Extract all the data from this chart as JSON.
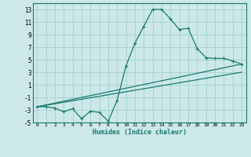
{
  "xlabel": "Humidex (Indice chaleur)",
  "bg_color": "#cce8e8",
  "line_color": "#1a7a6e",
  "grid_color": "#a8d4d4",
  "ylim": [
    -5,
    14
  ],
  "xlim": [
    -0.5,
    23.5
  ],
  "yticks": [
    -5,
    -3,
    -1,
    1,
    3,
    5,
    7,
    9,
    11,
    13
  ],
  "xticks": [
    0,
    1,
    2,
    3,
    4,
    5,
    6,
    7,
    8,
    9,
    10,
    11,
    12,
    13,
    14,
    15,
    16,
    17,
    18,
    19,
    20,
    21,
    22,
    23
  ],
  "curve1_x": [
    0,
    1,
    2,
    3,
    4,
    5,
    6,
    7,
    8,
    9,
    10,
    11,
    12,
    13,
    14,
    15,
    16,
    17,
    18,
    19,
    20,
    21,
    22,
    23
  ],
  "curve1_y": [
    -2.5,
    -2.5,
    -2.7,
    -3.3,
    -2.8,
    -4.4,
    -3.2,
    -3.4,
    -4.8,
    -1.5,
    4.0,
    7.6,
    10.3,
    13.0,
    13.0,
    11.5,
    9.8,
    10.0,
    6.8,
    5.3,
    5.2,
    5.2,
    4.8,
    4.3
  ],
  "line2_x": [
    0,
    23
  ],
  "line2_y": [
    -2.5,
    4.3
  ],
  "line3_x": [
    0,
    23
  ],
  "line3_y": [
    -2.5,
    3.0
  ]
}
